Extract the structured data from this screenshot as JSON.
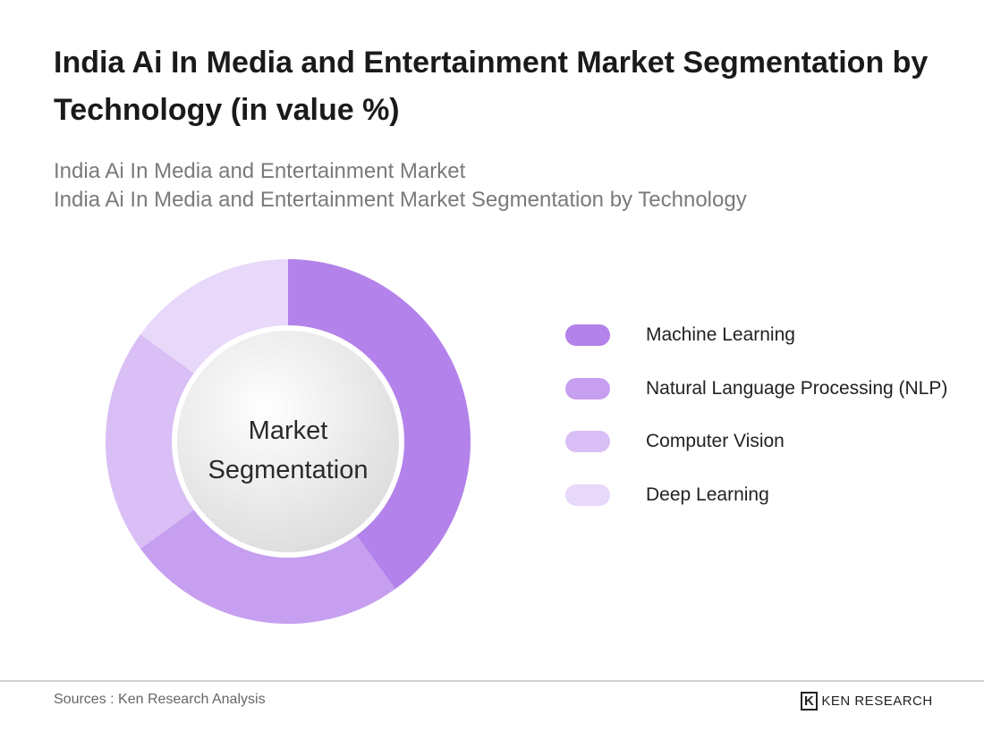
{
  "chart_data": {
    "type": "donut",
    "title": "India Ai In Media and Entertainment Market Segmentation by Technology (in value %)",
    "subtitle": [
      "India Ai In Media and Entertainment Market",
      "India Ai In Media and Entertainment Market Segmentation by Technology"
    ],
    "center_label": "Market Segmentation",
    "categories": [
      "Machine Learning",
      "Natural Language Processing (NLP)",
      "Computer Vision",
      "Deep Learning"
    ],
    "values": [
      40,
      25,
      20,
      15
    ],
    "colors": [
      "#b382ea",
      "#c79ff0",
      "#d9bff5",
      "#e8d8f9"
    ]
  },
  "footer": {
    "source": "Sources : Ken Research Analysis",
    "logo": "KEN RESEARCH"
  }
}
